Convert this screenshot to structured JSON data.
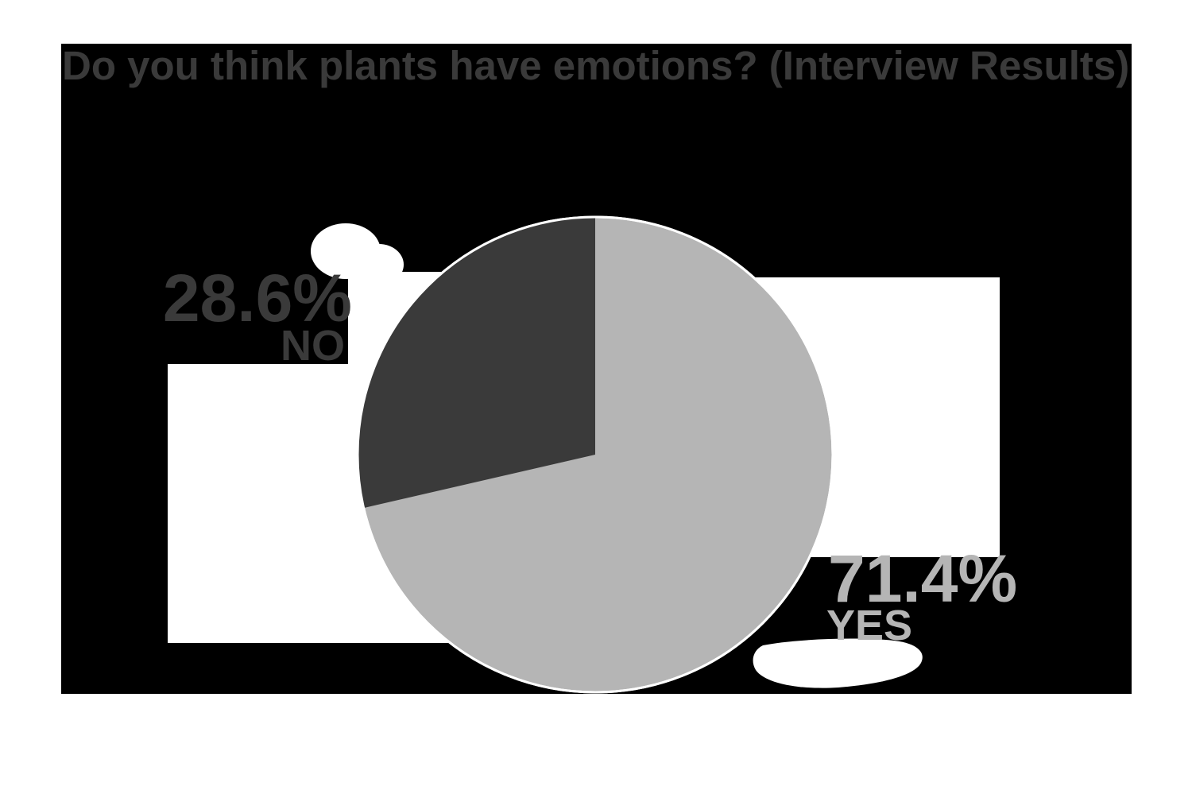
{
  "chart_data": {
    "type": "pie",
    "title": "Do you think plants have emotions? (Interview Results)",
    "slices": [
      {
        "label": "YES",
        "value": 71.4,
        "display": "71.4%",
        "color": "#b5b5b5"
      },
      {
        "label": "NO",
        "value": 28.6,
        "display": "28.6%",
        "color": "#3a3a3a"
      }
    ],
    "start_angle": "12-oclock",
    "no_slice_direction": "counterclockwise-from-top",
    "legend_position": "callout-labels-beside-pie",
    "outline_color": "#ffffff"
  },
  "colors": {
    "page_background": "#ffffff",
    "frame_background": "#000000",
    "dark_gray": "#3a3a3a",
    "light_gray": "#b5b5b5",
    "backdrop_white": "#ffffff"
  }
}
